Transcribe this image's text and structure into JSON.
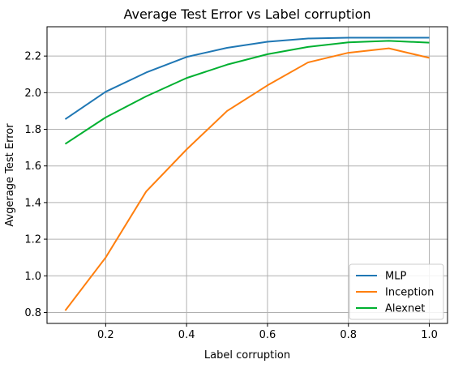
{
  "chart_data": {
    "type": "line",
    "title": "Average Test Error vs Label corruption",
    "xlabel": "Label corruption",
    "ylabel": "Avgerage Test Error",
    "x": [
      0.1,
      0.2,
      0.3,
      0.4,
      0.5,
      0.6,
      0.7,
      0.8,
      0.9,
      1.0
    ],
    "xlim": [
      0.055,
      1.045
    ],
    "ylim": [
      0.74,
      2.36
    ],
    "xticks": [
      0.2,
      0.4,
      0.6,
      0.8,
      1.0
    ],
    "xtick_labels": [
      "0.2",
      "0.4",
      "0.6",
      "0.8",
      "1.0"
    ],
    "yticks": [
      0.8,
      1.0,
      1.2,
      1.4,
      1.6,
      1.8,
      2.0,
      2.2
    ],
    "ytick_labels": [
      "0.8",
      "1.0",
      "1.2",
      "1.4",
      "1.6",
      "1.8",
      "2.0",
      "2.2"
    ],
    "grid": true,
    "legend_position": "bottom-right",
    "series": [
      {
        "name": "MLP",
        "color": "#1f77b4",
        "values": [
          1.855,
          2.005,
          2.11,
          2.195,
          2.245,
          2.278,
          2.296,
          2.3,
          2.3,
          2.3
        ]
      },
      {
        "name": "Inception",
        "color": "#ff7f0e",
        "values": [
          0.81,
          1.1,
          1.46,
          1.69,
          1.9,
          2.04,
          2.165,
          2.218,
          2.242,
          2.19
        ]
      },
      {
        "name": "Alexnet",
        "color": "#00b030",
        "values": [
          1.72,
          1.865,
          1.98,
          2.08,
          2.153,
          2.21,
          2.25,
          2.275,
          2.283,
          2.273
        ]
      }
    ]
  }
}
